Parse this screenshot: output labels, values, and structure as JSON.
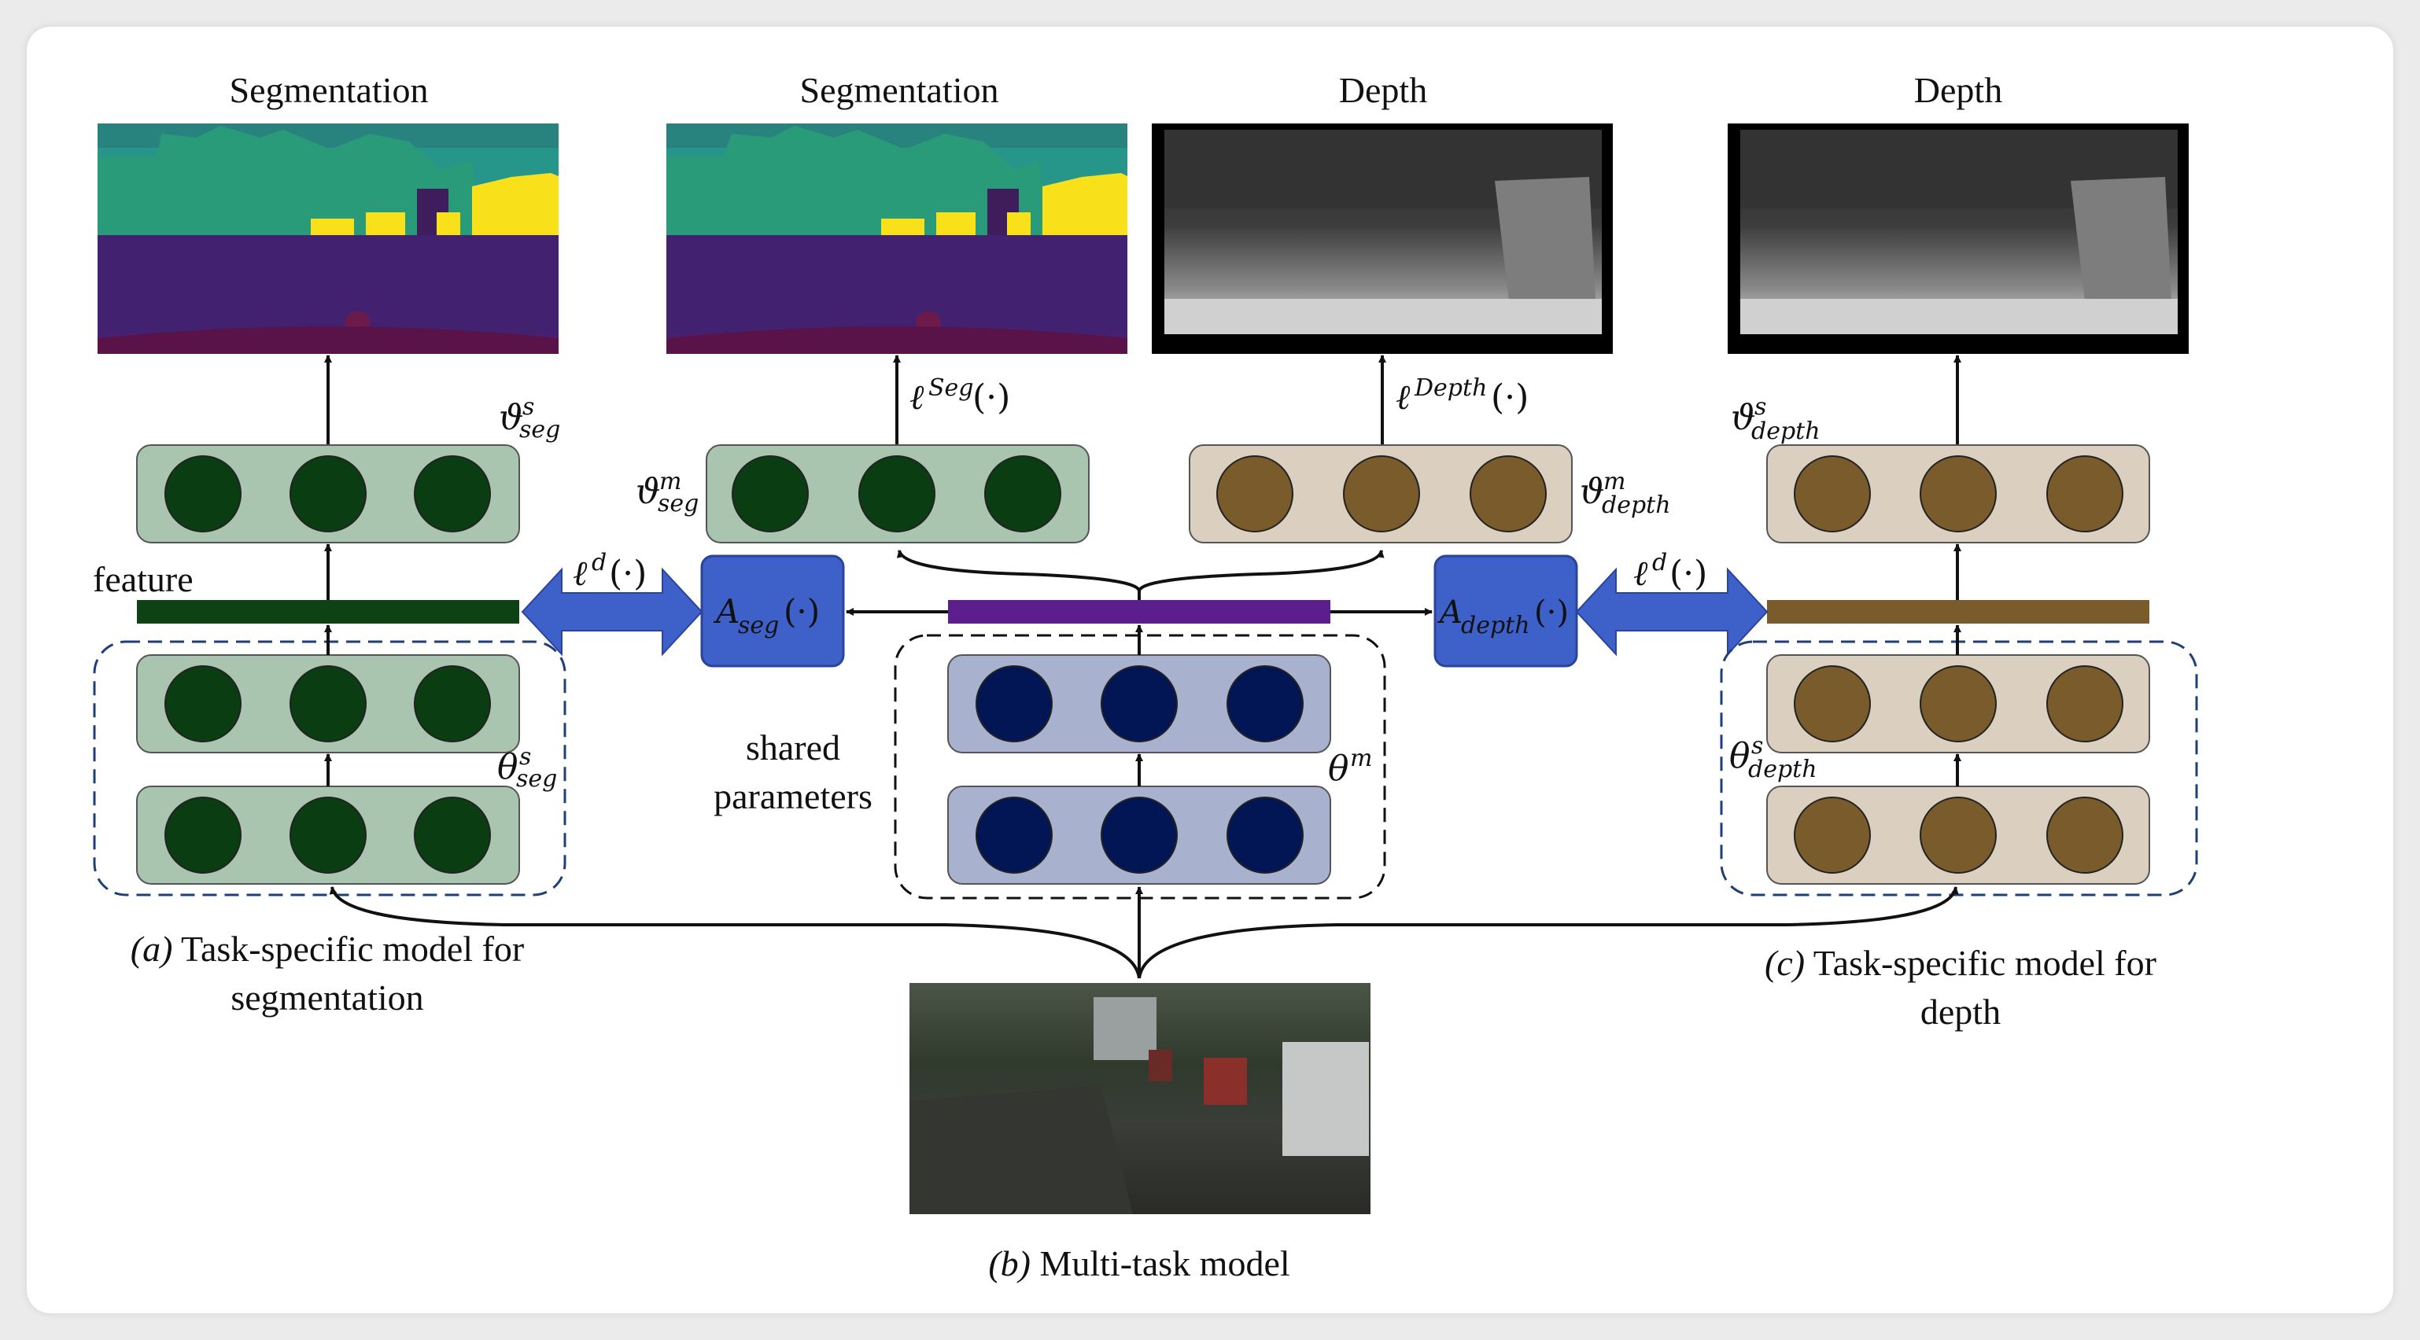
{
  "titles": {
    "seg_specific": "Segmentation",
    "seg_multi": "Segmentation",
    "depth_multi": "Depth",
    "depth_specific": "Depth"
  },
  "labels": {
    "feature": "feature",
    "shared_line1": "shared",
    "shared_line2": "parameters"
  },
  "math": {
    "vartheta": "ϑ",
    "theta": "θ",
    "ell": "ℓ",
    "A": "A",
    "sup_s": "s",
    "sup_m": "m",
    "sup_d": "d",
    "sub_seg": "seg",
    "sub_depth": "depth",
    "sup_Seg": "Seg",
    "sup_Depth": "Depth",
    "arg": "(·)"
  },
  "captions": {
    "a_label": "(a)",
    "a_line1": " Task-specific model for",
    "a_line2": "segmentation",
    "b_label": "(b)",
    "b_text": " Multi-task model",
    "c_label": "(c)",
    "c_line1": " Task-specific model for",
    "c_line2": "depth"
  },
  "colors": {
    "seg_circle": "#0b3d12",
    "seg_box": "#a9c5b0",
    "depth_circle": "#7a5b2c",
    "depth_box": "#dbd0bf",
    "shared_circle": "#021554",
    "shared_box": "#a8b2cf",
    "feature_seg": "#0e4214",
    "feature_shared": "#5b1e8c",
    "feature_depth": "#7a5b2c",
    "adapter": "#3d60c9"
  }
}
